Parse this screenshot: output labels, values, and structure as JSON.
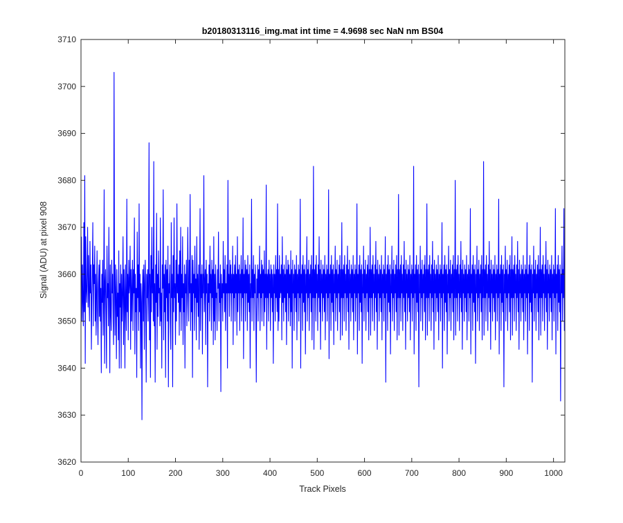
{
  "chart_data": {
    "type": "line",
    "title": "b20180313116_img.mat int time = 4.9698 sec  NaN nm BS04",
    "xlabel": "Track Pixels",
    "ylabel": "Signal (ADU) at pixel 908",
    "xlim": [
      0,
      1024
    ],
    "ylim": [
      3620,
      3710
    ],
    "xticks": [
      0,
      100,
      200,
      300,
      400,
      500,
      600,
      700,
      800,
      900,
      1000
    ],
    "yticks": [
      3620,
      3630,
      3640,
      3650,
      3660,
      3670,
      3680,
      3690,
      3700,
      3710
    ],
    "grid": false,
    "legend": "none",
    "series": [
      {
        "color": "#0000ff",
        "x_start": 1,
        "x_step": 1,
        "y": [
          3668,
          3650,
          3662,
          3654,
          3649,
          3671,
          3652,
          3681,
          3641,
          3668,
          3657,
          3654,
          3660,
          3670,
          3653,
          3664,
          3656,
          3650,
          3667,
          3656,
          3662,
          3644,
          3655,
          3660,
          3671,
          3649,
          3662,
          3658,
          3666,
          3650,
          3660,
          3647,
          3656,
          3665,
          3652,
          3645,
          3658,
          3662,
          3651,
          3663,
          3650,
          3657,
          3639,
          3660,
          3654,
          3663,
          3647,
          3656,
          3678,
          3641,
          3658,
          3661,
          3652,
          3640,
          3666,
          3655,
          3658,
          3649,
          3670,
          3656,
          3639,
          3662,
          3652,
          3648,
          3663,
          3656,
          3660,
          3650,
          3645,
          3703,
          3658,
          3647,
          3662,
          3655,
          3642,
          3661,
          3651,
          3656,
          3646,
          3665,
          3640,
          3658,
          3653,
          3662,
          3640,
          3660,
          3650,
          3656,
          3668,
          3645,
          3661,
          3656,
          3640,
          3662,
          3654,
          3648,
          3676,
          3652,
          3660,
          3646,
          3663,
          3656,
          3658,
          3666,
          3644,
          3661,
          3650,
          3657,
          3663,
          3648,
          3661,
          3656,
          3672,
          3643,
          3660,
          3652,
          3657,
          3638,
          3669,
          3655,
          3662,
          3648,
          3675,
          3652,
          3660,
          3640,
          3658,
          3654,
          3629,
          3656,
          3661,
          3650,
          3662,
          3644,
          3658,
          3663,
          3653,
          3637,
          3660,
          3655,
          3661,
          3650,
          3658,
          3688,
          3646,
          3660,
          3638,
          3664,
          3652,
          3670,
          3656,
          3661,
          3650,
          3684,
          3649,
          3658,
          3637,
          3662,
          3654,
          3673,
          3644,
          3660,
          3651,
          3665,
          3656,
          3657,
          3649,
          3672,
          3650,
          3656,
          3640,
          3662,
          3657,
          3678,
          3646,
          3660,
          3652,
          3662,
          3638,
          3663,
          3655,
          3661,
          3650,
          3666,
          3636,
          3658,
          3656,
          3662,
          3650,
          3644,
          3671,
          3655,
          3660,
          3636,
          3664,
          3652,
          3672,
          3655,
          3658,
          3645,
          3663,
          3650,
          3675,
          3656,
          3660,
          3654,
          3662,
          3647,
          3665,
          3652,
          3670,
          3648,
          3660,
          3655,
          3668,
          3645,
          3658,
          3652,
          3662,
          3640,
          3660,
          3656,
          3663,
          3649,
          3655,
          3670,
          3658,
          3650,
          3663,
          3656,
          3677,
          3648,
          3658,
          3652,
          3664,
          3638,
          3663,
          3656,
          3660,
          3648,
          3666,
          3655,
          3659,
          3646,
          3668,
          3654,
          3660,
          3651,
          3662,
          3644,
          3658,
          3674,
          3648,
          3660,
          3655,
          3662,
          3643,
          3660,
          3656,
          3681,
          3652,
          3658,
          3661,
          3645,
          3663,
          3656,
          3660,
          3636,
          3658,
          3654,
          3662,
          3650,
          3666,
          3656,
          3660,
          3648,
          3663,
          3655,
          3661,
          3645,
          3668,
          3650,
          3660,
          3646,
          3662,
          3655,
          3656,
          3648,
          3661,
          3657,
          3669,
          3650,
          3658,
          3654,
          3662,
          3635,
          3660,
          3655,
          3658,
          3650,
          3667,
          3656,
          3661,
          3652,
          3664,
          3648,
          3658,
          3656,
          3662,
          3640,
          3680,
          3656,
          3660,
          3651,
          3663,
          3656,
          3662,
          3650,
          3660,
          3656,
          3666,
          3645,
          3660,
          3655,
          3662,
          3650,
          3664,
          3656,
          3660,
          3647,
          3668,
          3652,
          3661,
          3656,
          3662,
          3648,
          3660,
          3656,
          3664,
          3650,
          3661,
          3655,
          3672,
          3642,
          3660,
          3656,
          3663,
          3650,
          3662,
          3656,
          3661,
          3648,
          3664,
          3654,
          3660,
          3652,
          3662,
          3640,
          3658,
          3655,
          3676,
          3650,
          3661,
          3655,
          3664,
          3648,
          3660,
          3656,
          3662,
          3652,
          3637,
          3659,
          3655,
          3662,
          3650,
          3661,
          3656,
          3666,
          3648,
          3660,
          3655,
          3663,
          3650,
          3662,
          3656,
          3661,
          3649,
          3665,
          3652,
          3660,
          3655,
          3679,
          3644,
          3660,
          3655,
          3661,
          3650,
          3663,
          3656,
          3660,
          3648,
          3662,
          3655,
          3661,
          3652,
          3660,
          3641,
          3662,
          3656,
          3660,
          3650,
          3664,
          3655,
          3661,
          3652,
          3675,
          3648,
          3661,
          3650,
          3664,
          3655,
          3660,
          3656,
          3662,
          3646,
          3668,
          3654,
          3661,
          3650,
          3662,
          3655,
          3660,
          3652,
          3664,
          3645,
          3661,
          3656,
          3663,
          3650,
          3662,
          3655,
          3660,
          3649,
          3665,
          3652,
          3661,
          3640,
          3663,
          3656,
          3660,
          3648,
          3662,
          3655,
          3661,
          3652,
          3664,
          3646,
          3660,
          3656,
          3662,
          3650,
          3661,
          3655,
          3676,
          3640,
          3660,
          3656,
          3662,
          3648,
          3664,
          3654,
          3661,
          3652,
          3662,
          3643,
          3660,
          3656,
          3668,
          3650,
          3661,
          3655,
          3663,
          3648,
          3660,
          3656,
          3662,
          3652,
          3664,
          3646,
          3661,
          3655,
          3683,
          3644,
          3661,
          3655,
          3662,
          3650,
          3664,
          3656,
          3660,
          3648,
          3662,
          3655,
          3668,
          3652,
          3661,
          3644,
          3663,
          3656,
          3660,
          3650,
          3662,
          3655,
          3661,
          3652,
          3664,
          3646,
          3660,
          3656,
          3662,
          3650,
          3661,
          3655,
          3678,
          3642,
          3660,
          3656,
          3662,
          3648,
          3664,
          3654,
          3661,
          3652,
          3662,
          3645,
          3660,
          3656,
          3666,
          3650,
          3661,
          3655,
          3663,
          3648,
          3660,
          3656,
          3662,
          3652,
          3664,
          3646,
          3661,
          3655,
          3671,
          3647,
          3661,
          3655,
          3662,
          3650,
          3664,
          3656,
          3660,
          3648,
          3662,
          3655,
          3666,
          3652,
          3661,
          3644,
          3663,
          3656,
          3660,
          3650,
          3662,
          3655,
          3661,
          3652,
          3664,
          3646,
          3660,
          3656,
          3662,
          3650,
          3661,
          3655,
          3675,
          3643,
          3660,
          3656,
          3662,
          3648,
          3664,
          3654,
          3661,
          3652,
          3662,
          3641,
          3660,
          3656,
          3666,
          3650,
          3661,
          3655,
          3663,
          3648,
          3660,
          3656,
          3662,
          3652,
          3664,
          3646,
          3661,
          3655,
          3670,
          3647,
          3661,
          3655,
          3662,
          3650,
          3664,
          3656,
          3660,
          3648,
          3662,
          3655,
          3667,
          3652,
          3661,
          3644,
          3663,
          3656,
          3660,
          3650,
          3662,
          3655,
          3661,
          3652,
          3664,
          3646,
          3660,
          3656,
          3662,
          3650,
          3661,
          3655,
          3668,
          3637,
          3660,
          3656,
          3662,
          3648,
          3664,
          3654,
          3661,
          3652,
          3662,
          3643,
          3660,
          3656,
          3666,
          3650,
          3661,
          3655,
          3663,
          3648,
          3660,
          3656,
          3662,
          3652,
          3664,
          3646,
          3661,
          3655,
          3677,
          3647,
          3661,
          3655,
          3662,
          3650,
          3664,
          3656,
          3660,
          3648,
          3662,
          3655,
          3667,
          3652,
          3661,
          3644,
          3663,
          3656,
          3660,
          3650,
          3662,
          3655,
          3661,
          3652,
          3664,
          3646,
          3660,
          3656,
          3662,
          3650,
          3661,
          3655,
          3683,
          3643,
          3660,
          3656,
          3662,
          3648,
          3664,
          3654,
          3661,
          3652,
          3662,
          3636,
          3660,
          3656,
          3666,
          3650,
          3661,
          3655,
          3663,
          3648,
          3660,
          3656,
          3662,
          3652,
          3664,
          3646,
          3661,
          3655,
          3675,
          3647,
          3661,
          3655,
          3662,
          3650,
          3664,
          3656,
          3660,
          3648,
          3662,
          3655,
          3667,
          3652,
          3661,
          3644,
          3663,
          3656,
          3660,
          3650,
          3662,
          3655,
          3661,
          3652,
          3664,
          3646,
          3660,
          3656,
          3662,
          3650,
          3661,
          3655,
          3671,
          3640,
          3660,
          3656,
          3662,
          3648,
          3664,
          3654,
          3661,
          3652,
          3662,
          3643,
          3660,
          3656,
          3666,
          3650,
          3661,
          3655,
          3663,
          3648,
          3660,
          3656,
          3662,
          3652,
          3664,
          3646,
          3661,
          3655,
          3680,
          3647,
          3661,
          3655,
          3662,
          3650,
          3664,
          3656,
          3660,
          3648,
          3662,
          3655,
          3667,
          3652,
          3661,
          3644,
          3663,
          3656,
          3660,
          3650,
          3662,
          3655,
          3661,
          3652,
          3664,
          3646,
          3660,
          3656,
          3662,
          3650,
          3661,
          3655,
          3674,
          3643,
          3660,
          3656,
          3662,
          3648,
          3664,
          3654,
          3661,
          3652,
          3662,
          3641,
          3660,
          3656,
          3666,
          3650,
          3661,
          3655,
          3663,
          3648,
          3660,
          3656,
          3662,
          3652,
          3664,
          3646,
          3661,
          3655,
          3684,
          3647,
          3661,
          3655,
          3662,
          3650,
          3664,
          3656,
          3660,
          3648,
          3662,
          3655,
          3667,
          3652,
          3661,
          3644,
          3663,
          3656,
          3660,
          3650,
          3662,
          3655,
          3661,
          3652,
          3664,
          3646,
          3660,
          3656,
          3662,
          3650,
          3661,
          3655,
          3676,
          3643,
          3660,
          3656,
          3662,
          3648,
          3664,
          3654,
          3661,
          3652,
          3662,
          3636,
          3660,
          3656,
          3666,
          3650,
          3661,
          3655,
          3663,
          3648,
          3660,
          3656,
          3662,
          3652,
          3664,
          3646,
          3661,
          3655,
          3668,
          3647,
          3661,
          3655,
          3662,
          3650,
          3664,
          3656,
          3660,
          3648,
          3662,
          3655,
          3667,
          3652,
          3661,
          3644,
          3663,
          3656,
          3660,
          3650,
          3662,
          3655,
          3661,
          3652,
          3664,
          3646,
          3660,
          3656,
          3662,
          3650,
          3661,
          3655,
          3671,
          3643,
          3660,
          3656,
          3662,
          3648,
          3664,
          3654,
          3661,
          3652,
          3662,
          3637,
          3660,
          3656,
          3666,
          3650,
          3661,
          3655,
          3663,
          3648,
          3660,
          3656,
          3662,
          3652,
          3664,
          3646,
          3661,
          3655,
          3670,
          3647,
          3661,
          3655,
          3662,
          3650,
          3664,
          3656,
          3660,
          3648,
          3662,
          3655,
          3667,
          3652,
          3661,
          3644,
          3663,
          3656,
          3660,
          3650,
          3662,
          3655,
          3661,
          3652,
          3664,
          3646,
          3660,
          3656,
          3662,
          3650,
          3661,
          3655,
          3674,
          3643,
          3660,
          3656,
          3662,
          3648,
          3664,
          3654,
          3661,
          3652,
          3662,
          3633,
          3660,
          3656,
          3666,
          3650,
          3661,
          3655,
          3674,
          3648,
          3660,
          3656,
          3662,
          3652,
          3664,
          3646,
          3661,
          3655,
          3668,
          3650,
          3661,
          3655,
          3665,
          3652,
          3660,
          3656
        ]
      }
    ]
  }
}
